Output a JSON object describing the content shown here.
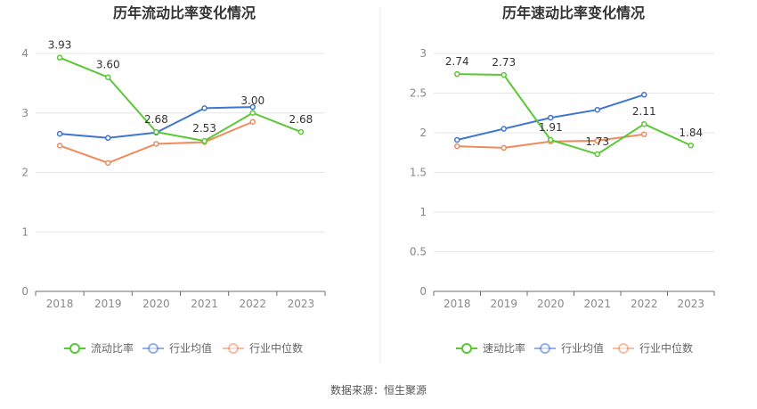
{
  "source": "数据来源：恒生聚源",
  "charts": [
    {
      "type": "line",
      "title": "历年流动比率变化情况",
      "categories": [
        "2018",
        "2019",
        "2020",
        "2021",
        "2022",
        "2023"
      ],
      "ylim": [
        0,
        4
      ],
      "yticks": [
        "0",
        "1",
        "2",
        "3",
        "4"
      ],
      "grid": true,
      "legend_position": "bottom",
      "series": [
        {
          "name": "流动比率",
          "color": "#5ac834",
          "values": [
            3.93,
            3.6,
            2.68,
            2.53,
            3.0,
            2.68
          ],
          "labels": [
            "3.93",
            "3.60",
            "2.68",
            "2.53",
            "3.00",
            "2.68"
          ]
        },
        {
          "name": "行业均值",
          "color": "#3f74d0",
          "values": [
            2.65,
            2.58,
            2.67,
            3.08,
            3.1,
            null
          ]
        },
        {
          "name": "行业中位数",
          "color": "#f08a5d",
          "values": [
            2.45,
            2.16,
            2.48,
            2.51,
            2.85,
            null
          ]
        }
      ]
    },
    {
      "type": "line",
      "title": "历年速动比率变化情况",
      "categories": [
        "2018",
        "2019",
        "2020",
        "2021",
        "2022",
        "2023"
      ],
      "ylim": [
        0,
        3
      ],
      "yticks": [
        "0",
        "0.5",
        "1",
        "1.5",
        "2",
        "2.5",
        "3"
      ],
      "grid": true,
      "legend_position": "bottom",
      "series": [
        {
          "name": "速动比率",
          "color": "#5ac834",
          "values": [
            2.74,
            2.73,
            1.91,
            1.73,
            2.11,
            1.84
          ],
          "labels": [
            "2.74",
            "2.73",
            "1.91",
            "1.73",
            "2.11",
            "1.84"
          ]
        },
        {
          "name": "行业均值",
          "color": "#3f74d0",
          "values": [
            1.91,
            2.05,
            2.19,
            2.29,
            2.48,
            null
          ]
        },
        {
          "name": "行业中位数",
          "color": "#f08a5d",
          "values": [
            1.83,
            1.81,
            1.89,
            1.9,
            1.98,
            null
          ]
        }
      ]
    }
  ],
  "chart_data": [
    {
      "type": "line",
      "title": "历年流动比率变化情况",
      "x": [
        "2018",
        "2019",
        "2020",
        "2021",
        "2022",
        "2023"
      ],
      "ylim": [
        0,
        4
      ],
      "series": [
        {
          "name": "流动比率",
          "values": [
            3.93,
            3.6,
            2.68,
            2.53,
            3.0,
            2.68
          ]
        },
        {
          "name": "行业均值",
          "values": [
            2.65,
            2.58,
            2.67,
            3.08,
            3.1,
            null
          ]
        },
        {
          "name": "行业中位数",
          "values": [
            2.45,
            2.16,
            2.48,
            2.51,
            2.85,
            null
          ]
        }
      ]
    },
    {
      "type": "line",
      "title": "历年速动比率变化情况",
      "x": [
        "2018",
        "2019",
        "2020",
        "2021",
        "2022",
        "2023"
      ],
      "ylim": [
        0,
        3
      ],
      "series": [
        {
          "name": "速动比率",
          "values": [
            2.74,
            2.73,
            1.91,
            1.73,
            2.11,
            1.84
          ]
        },
        {
          "name": "行业均值",
          "values": [
            1.91,
            2.05,
            2.19,
            2.29,
            2.48,
            null
          ]
        },
        {
          "name": "行业中位数",
          "values": [
            1.83,
            1.81,
            1.89,
            1.9,
            1.98,
            null
          ]
        }
      ]
    }
  ]
}
